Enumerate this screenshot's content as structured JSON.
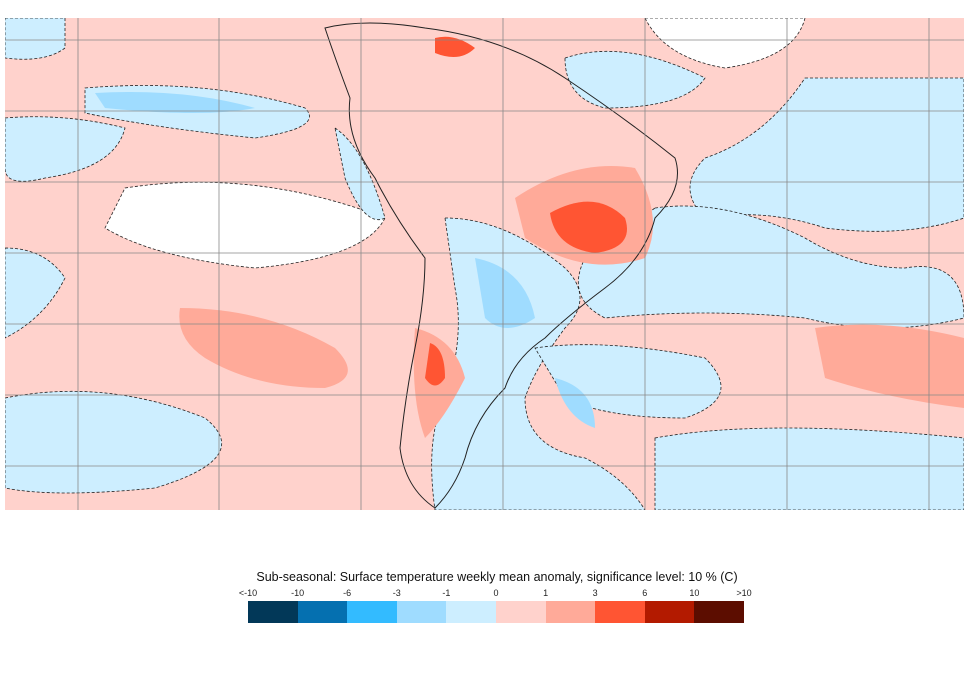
{
  "legend": {
    "title": "Sub-seasonal: Surface temperature weekly mean anomaly, significance level: 10 % (C)",
    "tick_labels": [
      "<-10",
      "-10",
      "-6",
      "-3",
      "-1",
      "0",
      "1",
      "3",
      "6",
      "10",
      ">10"
    ],
    "colors": [
      "#023858",
      "#0570b0",
      "#33bbff",
      "#9fdcff",
      "#cdeeff",
      "#ffd2cc",
      "#ffaa99",
      "#ff5533",
      "#b31a00",
      "#5c0d00"
    ]
  },
  "map": {
    "background_anomaly_color": "#ffd2cc",
    "neutral_color": "#ffffff",
    "grid_color": "#888888",
    "coastline_color": "#222222"
  }
}
